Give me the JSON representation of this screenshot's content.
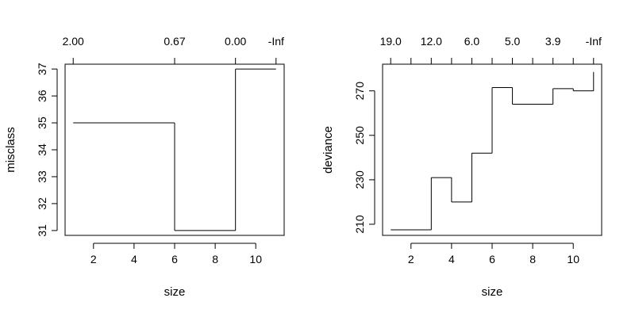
{
  "chart_data": [
    {
      "type": "line",
      "step": true,
      "xlabel": "size",
      "ylabel": "misclass",
      "xlim": [
        0.6,
        11.4
      ],
      "ylim": [
        30.82,
        37.18
      ],
      "x_ticks": [
        2,
        4,
        6,
        8,
        10
      ],
      "y_ticks": [
        31,
        32,
        33,
        34,
        35,
        36,
        37
      ],
      "top_axis": {
        "positions": [
          1,
          6,
          9,
          11
        ],
        "labels": [
          "2.00",
          "0.67",
          "0.00",
          "-Inf"
        ]
      },
      "x": [
        1,
        6,
        9,
        11
      ],
      "y": [
        35,
        31,
        37,
        37
      ]
    },
    {
      "type": "line",
      "step": true,
      "xlabel": "size",
      "ylabel": "deviance",
      "xlim": [
        0.6,
        11.4
      ],
      "ylim": [
        205,
        282
      ],
      "x_ticks": [
        2,
        4,
        6,
        8,
        10
      ],
      "y_ticks": [
        210,
        230,
        250,
        270
      ],
      "top_axis": {
        "positions": [
          1,
          2,
          3,
          4,
          5,
          6,
          7,
          8,
          9,
          10,
          11
        ],
        "labels": [
          "19.0",
          "",
          "12.0",
          "",
          "6.0",
          "",
          "5.0",
          "",
          "3.9",
          "",
          "-Inf"
        ]
      },
      "x": [
        1,
        3,
        4,
        5,
        6,
        7,
        9,
        10,
        11
      ],
      "y": [
        207.5,
        231,
        220,
        242,
        271.5,
        264,
        271,
        270,
        278.5
      ]
    }
  ]
}
